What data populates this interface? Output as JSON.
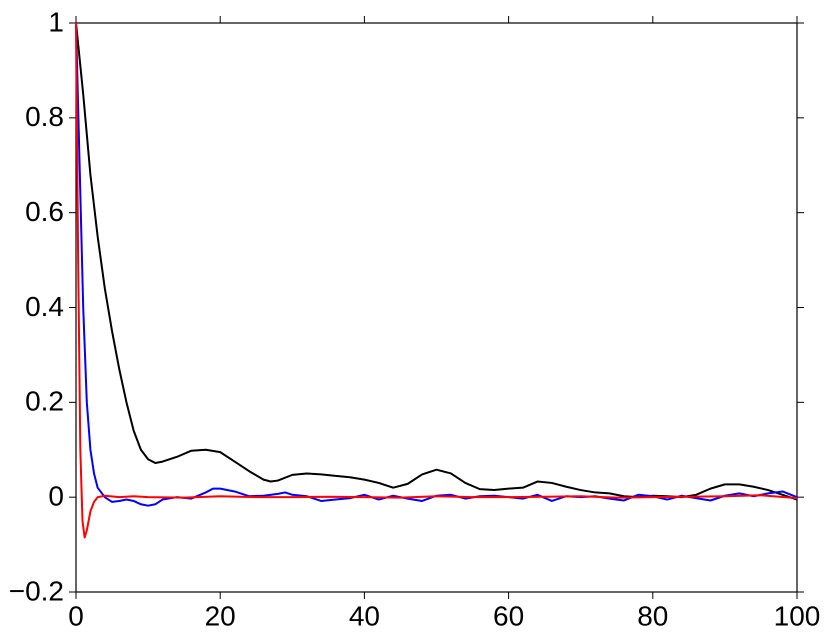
{
  "chart_data": {
    "type": "line",
    "xlim": [
      0,
      100
    ],
    "xticks": [
      0,
      20,
      40,
      60,
      80,
      100
    ],
    "ylim": [
      -0.2,
      1
    ],
    "yticks": [
      {
        "value": -0.2,
        "label": "−0.2"
      },
      0,
      0.2,
      0.4,
      0.6,
      0.8,
      1
    ],
    "grid": false,
    "series": [
      {
        "color": "#000000",
        "x": [
          0,
          1,
          2,
          3,
          4,
          5,
          6,
          7,
          8,
          9,
          10,
          11,
          12,
          14,
          16,
          18,
          20,
          22,
          24,
          26,
          27,
          28,
          30,
          32,
          34,
          36,
          38,
          40,
          42,
          44,
          46,
          48,
          50,
          52,
          54,
          56,
          58,
          60,
          62,
          64,
          66,
          68,
          70,
          72,
          74,
          76,
          78,
          80,
          82,
          84,
          86,
          88,
          90,
          92,
          94,
          96,
          98,
          100
        ],
        "values": [
          1,
          0.85,
          0.68,
          0.55,
          0.44,
          0.35,
          0.27,
          0.2,
          0.14,
          0.1,
          0.08,
          0.072,
          0.075,
          0.085,
          0.098,
          0.1,
          0.095,
          0.075,
          0.055,
          0.037,
          0.033,
          0.035,
          0.047,
          0.05,
          0.048,
          0.045,
          0.042,
          0.037,
          0.03,
          0.02,
          0.028,
          0.048,
          0.058,
          0.05,
          0.03,
          0.017,
          0.015,
          0.018,
          0.02,
          0.033,
          0.03,
          0.022,
          0.015,
          0.01,
          0.008,
          0.002,
          0,
          0.003,
          0.002,
          0,
          0.005,
          0.018,
          0.027,
          0.027,
          0.022,
          0.015,
          0.005,
          -0.005
        ]
      },
      {
        "color": "#0000ff",
        "x": [
          0,
          0.5,
          1,
          1.5,
          2,
          2.5,
          3,
          4,
          5,
          6,
          7,
          8,
          9,
          10,
          11,
          12,
          14,
          16,
          18,
          19,
          20,
          22,
          24,
          26,
          28,
          29,
          30,
          32,
          34,
          36,
          38,
          40,
          42,
          44,
          46,
          48,
          50,
          52,
          54,
          56,
          58,
          60,
          62,
          64,
          66,
          68,
          70,
          72,
          74,
          76,
          78,
          80,
          82,
          84,
          86,
          88,
          90,
          92,
          94,
          96,
          98,
          100
        ],
        "values": [
          1,
          0.7,
          0.4,
          0.2,
          0.1,
          0.05,
          0.02,
          0,
          -0.01,
          -0.008,
          -0.005,
          -0.008,
          -0.015,
          -0.018,
          -0.015,
          -0.005,
          0,
          -0.003,
          0.01,
          0.018,
          0.018,
          0.012,
          0.002,
          0.003,
          0.007,
          0.01,
          0.005,
          0.002,
          -0.008,
          -0.005,
          -0.002,
          0.005,
          -0.005,
          0.003,
          -0.003,
          -0.008,
          0.003,
          0.005,
          -0.003,
          0.002,
          0.003,
          0,
          -0.003,
          0.005,
          -0.008,
          0.002,
          0,
          0.002,
          -0.003,
          -0.007,
          0.005,
          0.002,
          -0.005,
          0.003,
          -0.002,
          -0.007,
          0.003,
          0.008,
          0.002,
          0.008,
          0.012,
          0
        ]
      },
      {
        "color": "#ff0000",
        "x": [
          0,
          0.3,
          0.6,
          0.9,
          1.2,
          1.5,
          2,
          2.5,
          3,
          4,
          6,
          8,
          10,
          15,
          20,
          25,
          30,
          35,
          40,
          45,
          50,
          55,
          60,
          65,
          70,
          75,
          80,
          85,
          90,
          95,
          100
        ],
        "values": [
          1,
          0.5,
          0.1,
          -0.05,
          -0.085,
          -0.07,
          -0.03,
          -0.01,
          0,
          0.003,
          0,
          0.002,
          0,
          -0.001,
          0.002,
          0,
          0,
          0.001,
          0,
          -0.001,
          0.002,
          0,
          0,
          0.001,
          0.002,
          -0.001,
          0,
          0.001,
          0.002,
          0.004,
          -0.002
        ]
      }
    ]
  }
}
